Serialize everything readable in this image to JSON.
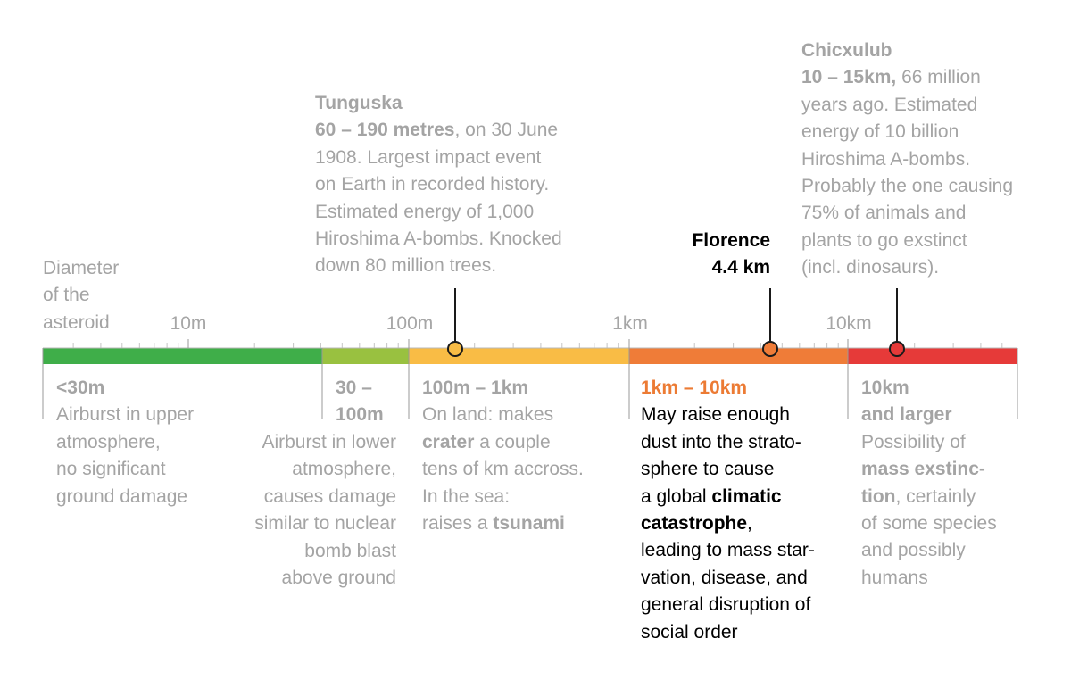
{
  "axis": {
    "title_lines": [
      "Diameter",
      "of the",
      "asteroid"
    ],
    "tick_labels": [
      "10m",
      "100m",
      "1km",
      "10km"
    ]
  },
  "segments": [
    {
      "range": "< 30 m",
      "color": "#3fae49"
    },
    {
      "range": "30 – 100 m",
      "color": "#99c140"
    },
    {
      "range": "100 m – 1 km",
      "color": "#f9bc45"
    },
    {
      "range": "1 km – 10 km",
      "color": "#ef7c38"
    },
    {
      "range": "10 km and larger",
      "color": "#e63a39"
    }
  ],
  "markers": [
    {
      "id": "tunguska",
      "color": "#f9bc45"
    },
    {
      "id": "florence",
      "color": "#ef7c38"
    },
    {
      "id": "chicxulub",
      "color": "#e63a39"
    }
  ],
  "tunguska": {
    "name": "Tunguska",
    "size": "60 – 190 metres",
    "rest_line1": ", on 30 June",
    "lines": [
      "1908. Largest impact event",
      "on Earth in recorded history.",
      "Estimated energy of 1,000",
      "Hiroshima A-bombs. Knocked",
      "down 80 million trees."
    ]
  },
  "florence": {
    "name": "Florence",
    "size": "4.4 km"
  },
  "chicxulub": {
    "name": "Chicxulub",
    "size": "10 – 15km,",
    "rest_line1": " 66 million",
    "lines": [
      "years ago. Estimated",
      "energy of 10 billion",
      "Hiroshima A-bombs.",
      "Probably the one causing",
      "75% of animals and",
      "plants to go exstinct",
      "(incl. dinosaurs)."
    ]
  },
  "categories": {
    "c1": {
      "title": "<30m",
      "lines": [
        "Airburst in upper",
        "atmosphere,",
        "no significant",
        "ground damage"
      ]
    },
    "c2": {
      "title_lines": [
        "30 –",
        "100m"
      ],
      "lines": [
        "Airburst in lower",
        "atmosphere,",
        "causes damage",
        "similar to nuclear",
        "bomb blast",
        "above ground"
      ]
    },
    "c3": {
      "title": "100m – 1km",
      "line1": "On land: makes",
      "line2_bold": "crater",
      "line2_rest": " a couple",
      "line3": "tens of km accross.",
      "line4": "In the sea:",
      "line5_pre": "raises a ",
      "line5_bold": "tsunami"
    },
    "c4": {
      "title": "1km – 10km",
      "line1": "May raise enough",
      "line2": "dust into the strato-",
      "line3": "sphere to cause",
      "line4_pre": "a global ",
      "line4_bold": "climatic",
      "line5_bold": "catastrophe",
      "line5_rest": ",",
      "lines_after": [
        "leading to mass star-",
        "vation, disease, and",
        "general disruption of",
        "social order"
      ]
    },
    "c5": {
      "title_lines": [
        "10km",
        "and larger"
      ],
      "line1": "Possibility of",
      "line2_bold": "mass exstinc-",
      "line3_bold": "tion",
      "line3_rest": ", certainly",
      "lines_after": [
        "of some species",
        "and possibly",
        "humans"
      ]
    }
  }
}
